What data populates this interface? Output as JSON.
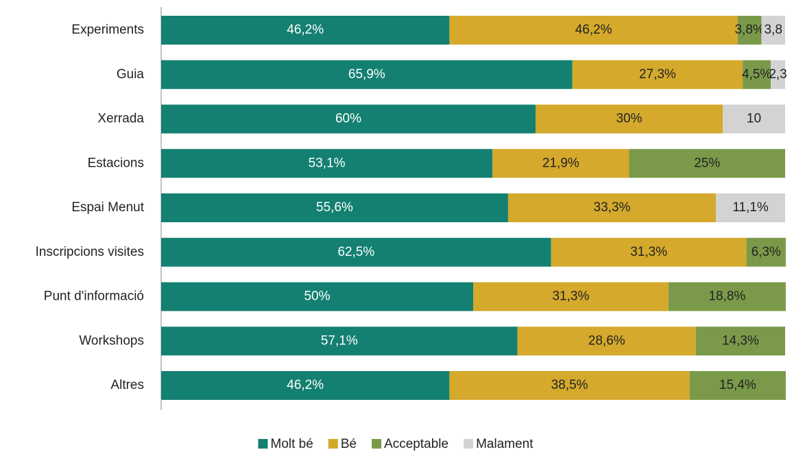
{
  "chart_data": {
    "type": "stacked-bar-horizontal",
    "categories": [
      "Experiments",
      "Guia",
      "Xerrada",
      "Estacions",
      "Espai Menut",
      "Inscripcions visites",
      "Punt d'informació",
      "Workshops",
      "Altres"
    ],
    "xlim": [
      0,
      100
    ],
    "series": [
      {
        "name": "Molt bé",
        "color": "#148071",
        "values": [
          46.2,
          65.9,
          60,
          53.1,
          55.6,
          62.5,
          50,
          57.1,
          46.2
        ],
        "value_labels": [
          "46,2%",
          "65,9%",
          "60%",
          "53,1%",
          "55,6%",
          "62,5%",
          "50%",
          "57,1%",
          "46,2%"
        ]
      },
      {
        "name": "Bé",
        "color": "#d4a92c",
        "values": [
          46.2,
          27.3,
          30,
          21.9,
          33.3,
          31.3,
          31.3,
          28.6,
          38.5
        ],
        "value_labels": [
          "46,2%",
          "27,3%",
          "30%",
          "21,9%",
          "33,3%",
          "31,3%",
          "31,3%",
          "28,6%",
          "38,5%"
        ]
      },
      {
        "name": "Acceptable",
        "color": "#7a9a4a",
        "values": [
          3.8,
          4.5,
          null,
          25,
          null,
          6.3,
          18.8,
          14.3,
          15.4
        ],
        "value_labels": [
          "3,8%",
          "4,5%",
          null,
          "25%",
          null,
          "6,3%",
          "18,8%",
          "14,3%",
          "15,4%"
        ]
      },
      {
        "name": "Malament",
        "color": "#d3d3d3",
        "values": [
          3.8,
          2.3,
          10,
          null,
          11.1,
          null,
          null,
          null,
          null
        ],
        "value_labels": [
          "3,8",
          "2,3",
          "10",
          null,
          "11,1%",
          null,
          null,
          null,
          null
        ]
      }
    ]
  }
}
